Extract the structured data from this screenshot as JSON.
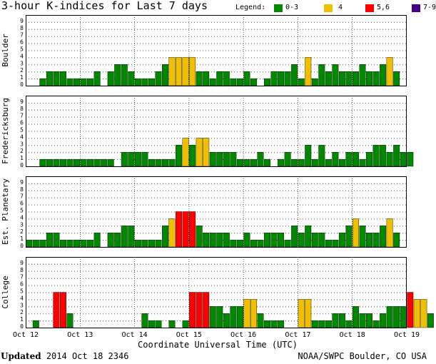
{
  "title": "3-hour K-indices for Last 7 days",
  "legend": {
    "label": "Legend:",
    "items": [
      {
        "label": "0-3",
        "color": "#008800"
      },
      {
        "label": "4",
        "color": "#f0c000"
      },
      {
        "label": "5,6",
        "color": "#ff0000"
      },
      {
        "label": "7-9",
        "color": "#440088"
      }
    ]
  },
  "footer": {
    "updated_label": "Updated",
    "updated_value": "2014 Oct 18 2346",
    "credit": "NOAA/SWPC Boulder, CO USA"
  },
  "chart_data": {
    "type": "bar",
    "xlabel": "Coordinate Universal Time (UTC)",
    "x_tick_labels": [
      "Oct 12",
      "Oct 13",
      "Oct 14",
      "Oct 15",
      "Oct 16",
      "Oct 17",
      "Oct 18",
      "Oct 19"
    ],
    "ylim": [
      0,
      9
    ],
    "y_ticks": [
      0,
      1,
      2,
      3,
      4,
      5,
      6,
      7,
      8,
      9
    ],
    "grid": "horizontal dotted",
    "color_scale": [
      {
        "range": "0-3",
        "color": "#008800"
      },
      {
        "range": "4",
        "color": "#f0c000"
      },
      {
        "range": "5,6",
        "color": "#ff0000"
      },
      {
        "range": "7-9",
        "color": "#440088"
      }
    ],
    "panels": [
      {
        "name": "Boulder",
        "values": [
          0,
          0,
          1,
          2,
          2,
          2,
          1,
          1,
          1,
          1,
          2,
          0,
          2,
          3,
          3,
          2,
          1,
          1,
          1,
          2,
          3,
          4,
          4,
          4,
          4,
          2,
          2,
          1,
          2,
          2,
          1,
          1,
          2,
          1,
          0,
          1,
          2,
          2,
          2,
          3,
          1,
          4,
          1,
          3,
          2,
          3,
          2,
          2,
          2,
          3,
          2,
          2,
          3,
          4,
          2,
          0
        ]
      },
      {
        "name": "Fredericksburg",
        "values": [
          0,
          0,
          1,
          1,
          1,
          1,
          1,
          1,
          1,
          1,
          1,
          1,
          1,
          0,
          2,
          2,
          2,
          2,
          1,
          1,
          1,
          1,
          3,
          4,
          3,
          4,
          4,
          2,
          2,
          2,
          2,
          1,
          1,
          1,
          2,
          1,
          0,
          1,
          2,
          1,
          1,
          3,
          1,
          3,
          1,
          2,
          1,
          2,
          2,
          1,
          2,
          3,
          3,
          2,
          3,
          2,
          2,
          0
        ]
      },
      {
        "name": "Est. Planetary",
        "values": [
          1,
          1,
          1,
          2,
          2,
          1,
          1,
          1,
          1,
          1,
          2,
          0,
          2,
          2,
          3,
          3,
          1,
          1,
          1,
          1,
          3,
          4,
          5,
          5,
          5,
          3,
          2,
          2,
          2,
          2,
          1,
          1,
          2,
          1,
          1,
          2,
          2,
          2,
          1,
          3,
          2,
          3,
          2,
          2,
          1,
          1,
          2,
          3,
          4,
          3,
          2,
          2,
          3,
          4,
          2,
          0
        ]
      },
      {
        "name": "College",
        "values": [
          0,
          1,
          0,
          0,
          5,
          5,
          2,
          0,
          0,
          0,
          0,
          0,
          0,
          0,
          0,
          0,
          0,
          2,
          1,
          1,
          0,
          1,
          0,
          1,
          5,
          5,
          5,
          3,
          3,
          2,
          3,
          3,
          4,
          4,
          2,
          1,
          1,
          1,
          0,
          0,
          4,
          4,
          1,
          1,
          1,
          2,
          2,
          1,
          3,
          2,
          2,
          1,
          2,
          3,
          3,
          3,
          5,
          4,
          4,
          2,
          0
        ]
      }
    ]
  }
}
